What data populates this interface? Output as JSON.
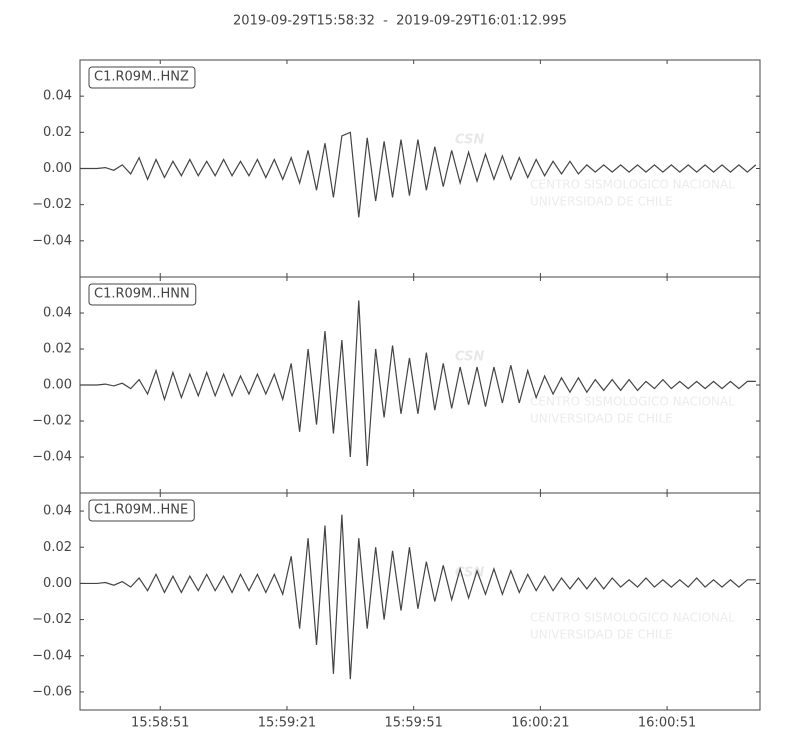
{
  "title": "2019-09-29T15:58:32  -  2019-09-29T16:01:12.995",
  "watermark": {
    "logo": "CSN",
    "line1": "CENTRO SISMOLOGICO NACIONAL",
    "line2": "UNIVERSIDAD DE CHILE"
  },
  "chart_data": [
    {
      "type": "line",
      "x": [
        "15:58:32",
        "15:58:34",
        "15:58:36",
        "15:58:38",
        "15:58:40",
        "15:58:42",
        "15:58:44",
        "15:58:46",
        "15:58:48",
        "15:58:50",
        "15:58:52",
        "15:58:54",
        "15:58:56",
        "15:58:58",
        "15:59:00",
        "15:59:02",
        "15:59:04",
        "15:59:06",
        "15:59:08",
        "15:59:10",
        "15:59:12",
        "15:59:14",
        "15:59:16",
        "15:59:18",
        "15:59:20",
        "15:59:22",
        "15:59:24",
        "15:59:26",
        "15:59:28",
        "15:59:30",
        "15:59:32",
        "15:59:34",
        "15:59:36",
        "15:59:38",
        "15:59:40",
        "15:59:42",
        "15:59:44",
        "15:59:46",
        "15:59:48",
        "15:59:50",
        "15:59:52",
        "15:59:54",
        "15:59:56",
        "15:59:58",
        "16:00:00",
        "16:00:02",
        "16:00:04",
        "16:00:06",
        "16:00:08",
        "16:00:10",
        "16:00:12",
        "16:00:14",
        "16:00:16",
        "16:00:18",
        "16:00:20",
        "16:00:22",
        "16:00:24",
        "16:00:26",
        "16:00:28",
        "16:00:30",
        "16:00:32",
        "16:00:34",
        "16:00:36",
        "16:00:38",
        "16:00:40",
        "16:00:42",
        "16:00:44",
        "16:00:46",
        "16:00:48",
        "16:00:50",
        "16:00:52",
        "16:00:54",
        "16:00:56",
        "16:00:58",
        "16:01:00",
        "16:01:02",
        "16:01:04",
        "16:01:06",
        "16:01:08",
        "16:01:10",
        "16:01:12"
      ],
      "series": [
        {
          "name": "C1.R09M..HNZ",
          "color": "#444444",
          "values": [
            0,
            0,
            0,
            0.0005,
            -0.001,
            0.002,
            -0.003,
            0.006,
            -0.006,
            0.005,
            -0.005,
            0.004,
            -0.004,
            0.005,
            -0.004,
            0.004,
            -0.004,
            0.005,
            -0.004,
            0.004,
            -0.004,
            0.005,
            -0.005,
            0.005,
            -0.006,
            0.006,
            -0.008,
            0.01,
            -0.012,
            0.014,
            -0.016,
            0.018,
            0.02,
            -0.027,
            0.017,
            -0.018,
            0.015,
            -0.016,
            0.016,
            -0.015,
            0.016,
            -0.012,
            0.012,
            -0.01,
            0.01,
            -0.008,
            0.009,
            -0.007,
            0.008,
            -0.006,
            0.007,
            -0.006,
            0.006,
            -0.005,
            0.005,
            -0.004,
            0.004,
            -0.003,
            0.004,
            -0.003,
            0.002,
            -0.002,
            0.002,
            -0.002,
            0.002,
            -0.002,
            0.002,
            -0.002,
            0.002,
            -0.002,
            0.002,
            -0.002,
            0.002,
            -0.002,
            0.002,
            -0.002,
            0.002,
            -0.002,
            0.002,
            -0.002,
            0.002
          ]
        }
      ],
      "xlim": [
        "15:58:32",
        "16:01:12.995"
      ],
      "xticks": [
        "15:58:51",
        "15:59:21",
        "15:59:51",
        "16:00:21",
        "16:00:51"
      ],
      "ylim": [
        -0.06,
        0.06
      ],
      "yticks": [
        {
          "value": -0.04,
          "label": "−0.04"
        },
        {
          "value": -0.02,
          "label": "−0.02"
        },
        {
          "value": 0,
          "label": "0.00"
        },
        0.02,
        0.04
      ]
    },
    {
      "type": "line",
      "x": [
        "15:58:32",
        "15:58:34",
        "15:58:36",
        "15:58:38",
        "15:58:40",
        "15:58:42",
        "15:58:44",
        "15:58:46",
        "15:58:48",
        "15:58:50",
        "15:58:52",
        "15:58:54",
        "15:58:56",
        "15:58:58",
        "15:59:00",
        "15:59:02",
        "15:59:04",
        "15:59:06",
        "15:59:08",
        "15:59:10",
        "15:59:12",
        "15:59:14",
        "15:59:16",
        "15:59:18",
        "15:59:20",
        "15:59:22",
        "15:59:24",
        "15:59:26",
        "15:59:28",
        "15:59:30",
        "15:59:32",
        "15:59:34",
        "15:59:36",
        "15:59:38",
        "15:59:40",
        "15:59:42",
        "15:59:44",
        "15:59:46",
        "15:59:48",
        "15:59:50",
        "15:59:52",
        "15:59:54",
        "15:59:56",
        "15:59:58",
        "16:00:00",
        "16:00:02",
        "16:00:04",
        "16:00:06",
        "16:00:08",
        "16:00:10",
        "16:00:12",
        "16:00:14",
        "16:00:16",
        "16:00:18",
        "16:00:20",
        "16:00:22",
        "16:00:24",
        "16:00:26",
        "16:00:28",
        "16:00:30",
        "16:00:32",
        "16:00:34",
        "16:00:36",
        "16:00:38",
        "16:00:40",
        "16:00:42",
        "16:00:44",
        "16:00:46",
        "16:00:48",
        "16:00:50",
        "16:00:52",
        "16:00:54",
        "16:00:56",
        "16:00:58",
        "16:01:00",
        "16:01:02",
        "16:01:04",
        "16:01:06",
        "16:01:08",
        "16:01:10",
        "16:01:12"
      ],
      "series": [
        {
          "name": "C1.R09M..HNN",
          "color": "#444444",
          "values": [
            0,
            0,
            0,
            0.0005,
            -0.0005,
            0.001,
            -0.002,
            0.003,
            -0.005,
            0.008,
            -0.008,
            0.007,
            -0.007,
            0.006,
            -0.006,
            0.007,
            -0.006,
            0.006,
            -0.006,
            0.005,
            -0.005,
            0.006,
            -0.005,
            0.006,
            -0.008,
            0.012,
            -0.026,
            0.02,
            -0.022,
            0.03,
            -0.027,
            0.025,
            -0.04,
            0.047,
            -0.045,
            0.02,
            -0.018,
            0.022,
            -0.016,
            0.015,
            -0.016,
            0.018,
            -0.014,
            0.012,
            -0.013,
            0.01,
            -0.011,
            0.01,
            -0.012,
            0.01,
            -0.01,
            0.011,
            -0.01,
            0.008,
            -0.007,
            0.005,
            -0.005,
            0.004,
            -0.004,
            0.004,
            -0.004,
            0.003,
            -0.003,
            0.003,
            -0.003,
            0.003,
            -0.003,
            0.002,
            -0.002,
            0.003,
            -0.002,
            0.002,
            -0.002,
            0.002,
            -0.002,
            0.002,
            -0.002,
            0.002,
            -0.002,
            0.002,
            0.002
          ]
        }
      ],
      "xlim": [
        "15:58:32",
        "16:01:12.995"
      ],
      "xticks": [
        "15:58:51",
        "15:59:21",
        "15:59:51",
        "16:00:21",
        "16:00:51"
      ],
      "ylim": [
        -0.06,
        0.06
      ],
      "yticks": [
        {
          "value": -0.04,
          "label": "−0.04"
        },
        {
          "value": -0.02,
          "label": "−0.02"
        },
        {
          "value": 0,
          "label": "0.00"
        },
        0.02,
        0.04
      ]
    },
    {
      "type": "line",
      "x": [
        "15:58:32",
        "15:58:34",
        "15:58:36",
        "15:58:38",
        "15:58:40",
        "15:58:42",
        "15:58:44",
        "15:58:46",
        "15:58:48",
        "15:58:50",
        "15:58:52",
        "15:58:54",
        "15:58:56",
        "15:58:58",
        "15:59:00",
        "15:59:02",
        "15:59:04",
        "15:59:06",
        "15:59:08",
        "15:59:10",
        "15:59:12",
        "15:59:14",
        "15:59:16",
        "15:59:18",
        "15:59:20",
        "15:59:22",
        "15:59:24",
        "15:59:26",
        "15:59:28",
        "15:59:30",
        "15:59:32",
        "15:59:34",
        "15:59:36",
        "15:59:38",
        "15:59:40",
        "15:59:42",
        "15:59:44",
        "15:59:46",
        "15:59:48",
        "15:59:50",
        "15:59:52",
        "15:59:54",
        "15:59:56",
        "15:59:58",
        "16:00:00",
        "16:00:02",
        "16:00:04",
        "16:00:06",
        "16:00:08",
        "16:00:10",
        "16:00:12",
        "16:00:14",
        "16:00:16",
        "16:00:18",
        "16:00:20",
        "16:00:22",
        "16:00:24",
        "16:00:26",
        "16:00:28",
        "16:00:30",
        "16:00:32",
        "16:00:34",
        "16:00:36",
        "16:00:38",
        "16:00:40",
        "16:00:42",
        "16:00:44",
        "16:00:46",
        "16:00:48",
        "16:00:50",
        "16:00:52",
        "16:00:54",
        "16:00:56",
        "16:00:58",
        "16:01:00",
        "16:01:02",
        "16:01:04",
        "16:01:06",
        "16:01:08",
        "16:01:10",
        "16:01:12"
      ],
      "series": [
        {
          "name": "C1.R09M..HNE",
          "color": "#444444",
          "values": [
            0,
            0,
            0,
            0.0005,
            -0.001,
            0.001,
            -0.002,
            0.003,
            -0.004,
            0.005,
            -0.005,
            0.004,
            -0.005,
            0.004,
            -0.004,
            0.005,
            -0.004,
            0.004,
            -0.005,
            0.005,
            -0.004,
            0.005,
            -0.005,
            0.005,
            -0.006,
            0.015,
            -0.025,
            0.025,
            -0.034,
            0.032,
            -0.05,
            0.038,
            -0.053,
            0.025,
            -0.025,
            0.02,
            -0.02,
            0.018,
            -0.015,
            0.02,
            -0.014,
            0.012,
            -0.01,
            0.01,
            -0.009,
            0.008,
            -0.008,
            0.007,
            -0.006,
            0.008,
            -0.006,
            0.007,
            -0.005,
            0.005,
            -0.004,
            0.004,
            -0.004,
            0.003,
            -0.003,
            0.003,
            -0.003,
            0.003,
            -0.003,
            0.003,
            -0.002,
            0.002,
            -0.002,
            0.003,
            -0.002,
            0.002,
            -0.002,
            0.002,
            -0.002,
            0.003,
            -0.002,
            0.002,
            -0.002,
            0.002,
            -0.002,
            0.002,
            0.002
          ]
        }
      ],
      "xlim": [
        "15:58:32",
        "16:01:12.995"
      ],
      "xticks": [
        "15:58:51",
        "15:59:21",
        "15:59:51",
        "16:00:21",
        "16:00:51"
      ],
      "ylim": [
        -0.07,
        0.05
      ],
      "yticks": [
        {
          "value": -0.06,
          "label": "−0.06"
        },
        {
          "value": -0.04,
          "label": "−0.04"
        },
        {
          "value": -0.02,
          "label": "−0.02"
        },
        {
          "value": 0,
          "label": "0.00"
        },
        0.02,
        0.04
      ]
    }
  ]
}
